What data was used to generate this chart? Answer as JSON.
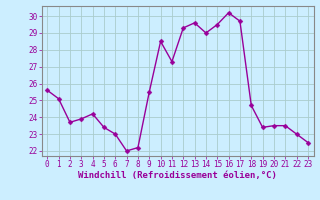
{
  "x": [
    0,
    1,
    2,
    3,
    4,
    5,
    6,
    7,
    8,
    9,
    10,
    11,
    12,
    13,
    14,
    15,
    16,
    17,
    18,
    19,
    20,
    21,
    22,
    23
  ],
  "y": [
    25.6,
    25.1,
    23.7,
    23.9,
    24.2,
    23.4,
    23.0,
    22.0,
    22.2,
    25.5,
    28.5,
    27.3,
    29.3,
    29.6,
    29.0,
    29.5,
    30.2,
    29.7,
    24.7,
    23.4,
    23.5,
    23.5,
    23.0,
    22.5
  ],
  "line_color": "#990099",
  "marker_color": "#990099",
  "bg_color": "#cceeff",
  "grid_color": "#aacccc",
  "xlabel": "Windchill (Refroidissement éolien,°C)",
  "xlabel_color": "#990099",
  "tick_color": "#990099",
  "spine_color": "#888888",
  "ylim": [
    21.7,
    30.6
  ],
  "xlim": [
    -0.5,
    23.5
  ],
  "yticks": [
    22,
    23,
    24,
    25,
    26,
    27,
    28,
    29,
    30
  ],
  "xticks": [
    0,
    1,
    2,
    3,
    4,
    5,
    6,
    7,
    8,
    9,
    10,
    11,
    12,
    13,
    14,
    15,
    16,
    17,
    18,
    19,
    20,
    21,
    22,
    23
  ],
  "line_width": 1.0,
  "marker_size": 2.5,
  "tick_fontsize": 5.5,
  "xlabel_fontsize": 6.5
}
